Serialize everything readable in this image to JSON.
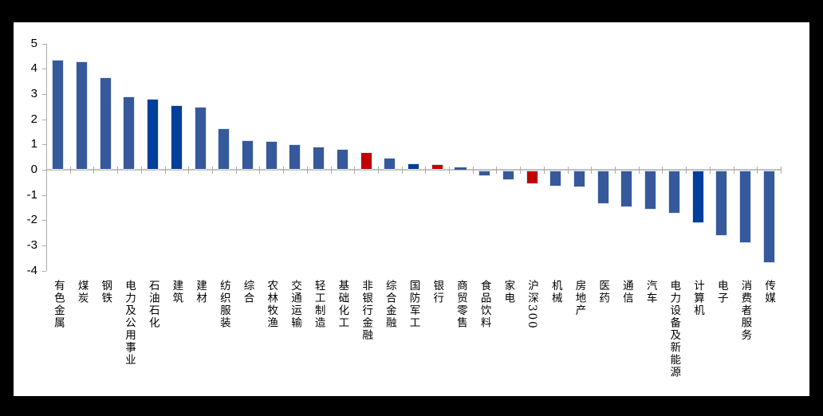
{
  "chart_data": {
    "type": "bar",
    "categories": [
      "有色金属",
      "煤炭",
      "钢铁",
      "电力及公用事业",
      "石油石化",
      "建筑",
      "建材",
      "纺织服装",
      "综合",
      "农林牧渔",
      "交通运输",
      "轻工制造",
      "基础化工",
      "非银行金融",
      "综合金融",
      "国防军工",
      "银行",
      "商贸零售",
      "食品饮料",
      "家电",
      "沪深300",
      "机械",
      "房地产",
      "医药",
      "通信",
      "汽车",
      "电力设备及新能源",
      "计算机",
      "电子",
      "消费者服务",
      "传媒"
    ],
    "values": [
      4.35,
      4.3,
      3.65,
      2.9,
      2.8,
      2.55,
      2.5,
      1.65,
      1.16,
      1.15,
      1.0,
      0.93,
      0.83,
      0.68,
      0.47,
      0.25,
      0.23,
      0.09,
      -0.22,
      -0.38,
      -0.53,
      -0.64,
      -0.67,
      -1.34,
      -1.44,
      -1.55,
      -1.71,
      -2.07,
      -2.58,
      -2.88,
      -3.67
    ],
    "color_keys": [
      "default",
      "default",
      "default",
      "default",
      "emphasis",
      "emphasis",
      "default",
      "default",
      "default",
      "default",
      "default",
      "default",
      "default",
      "highlight",
      "default",
      "emphasis",
      "highlight",
      "default",
      "default",
      "default",
      "highlight",
      "default",
      "default",
      "default",
      "default",
      "default",
      "default",
      "emphasis",
      "default",
      "default",
      "default"
    ],
    "highlighted_categories": [
      "非银行金融",
      "银行",
      "沪深300"
    ],
    "emphasis_categories": [
      "石油石化",
      "建筑",
      "国防军工",
      "计算机"
    ],
    "yticks": [
      5,
      4,
      3,
      2,
      1,
      0,
      -1,
      -2,
      -3,
      -4
    ],
    "ylim": [
      -4,
      5
    ],
    "grid": false,
    "legend": false,
    "colors": {
      "default_bar": "#35599B",
      "emphasis_bar": "#003F9C",
      "highlight_bar": "#C00000",
      "axis": "#ABABAB",
      "category_axis": "#C2C2C2",
      "text": "#000000",
      "background": "#000000",
      "panel": "#FFFFFF"
    }
  }
}
